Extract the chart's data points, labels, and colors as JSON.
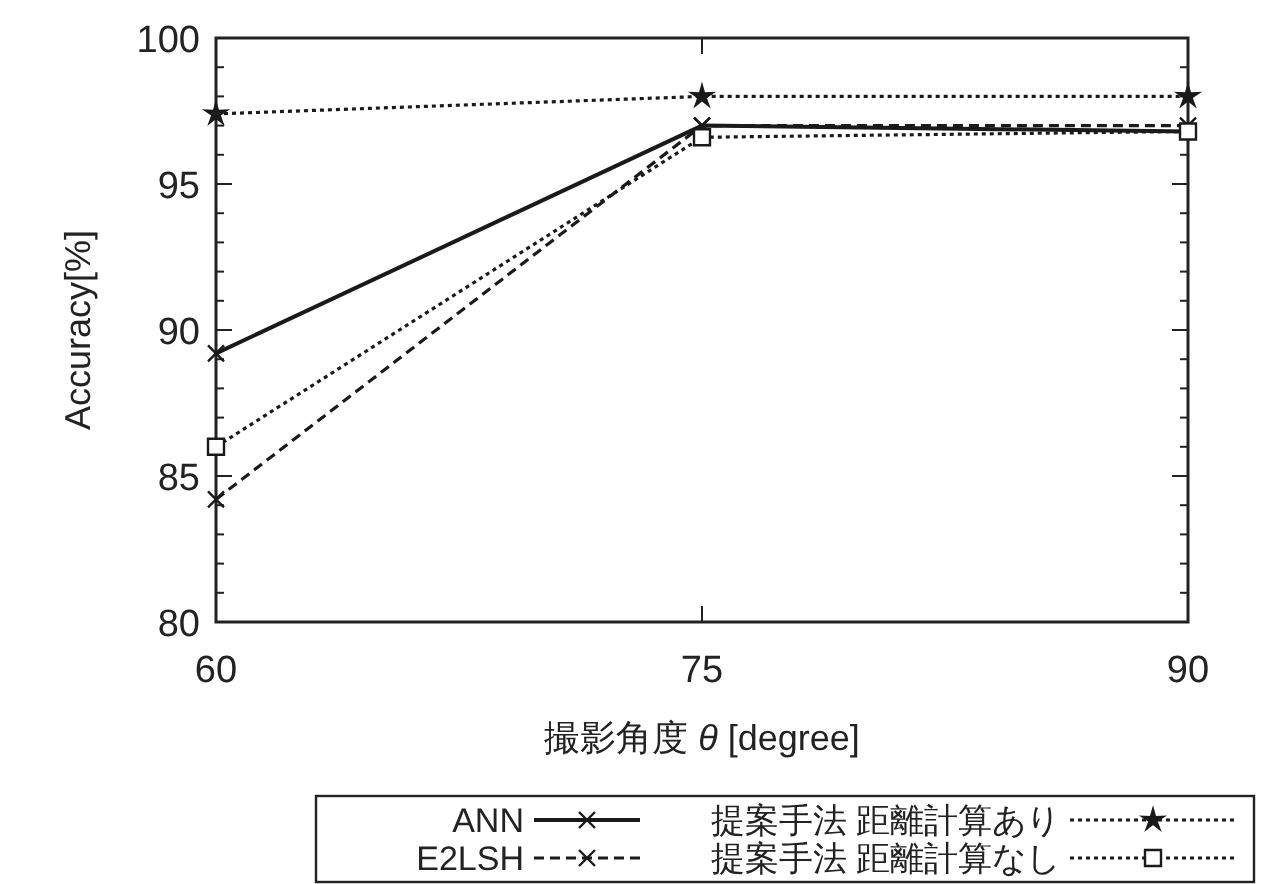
{
  "chart_data": {
    "type": "line",
    "xlabel": "撮影角度 *θ* [degree]",
    "ylabel": "Accuracy[%]",
    "x": [
      60,
      75,
      90
    ],
    "xlim": [
      60,
      90
    ],
    "xticks": [
      60,
      75,
      90
    ],
    "ylim": [
      80,
      100
    ],
    "yticks": [
      80,
      85,
      90,
      95,
      100
    ],
    "grid": false,
    "legend": "bottom",
    "series": [
      {
        "name": "ANN",
        "color": "#1a1a1a",
        "values": [
          89.2,
          97.0,
          96.8
        ],
        "marker": "cross",
        "line_style": "solid"
      },
      {
        "name": "E2LSH",
        "color": "#1a1a1a",
        "values": [
          84.2,
          97.0,
          97.0
        ],
        "marker": "cross",
        "line_style": "dashed"
      },
      {
        "name": "提案手法 距離計算あり",
        "color": "#1a1a1a",
        "values": [
          97.4,
          98.0,
          98.0
        ],
        "marker": "star",
        "line_style": "dotted"
      },
      {
        "name": "提案手法 距離計算なし",
        "color": "#1a1a1a",
        "values": [
          86.0,
          96.6,
          96.8
        ],
        "marker": "square",
        "line_style": "dotted"
      }
    ]
  }
}
